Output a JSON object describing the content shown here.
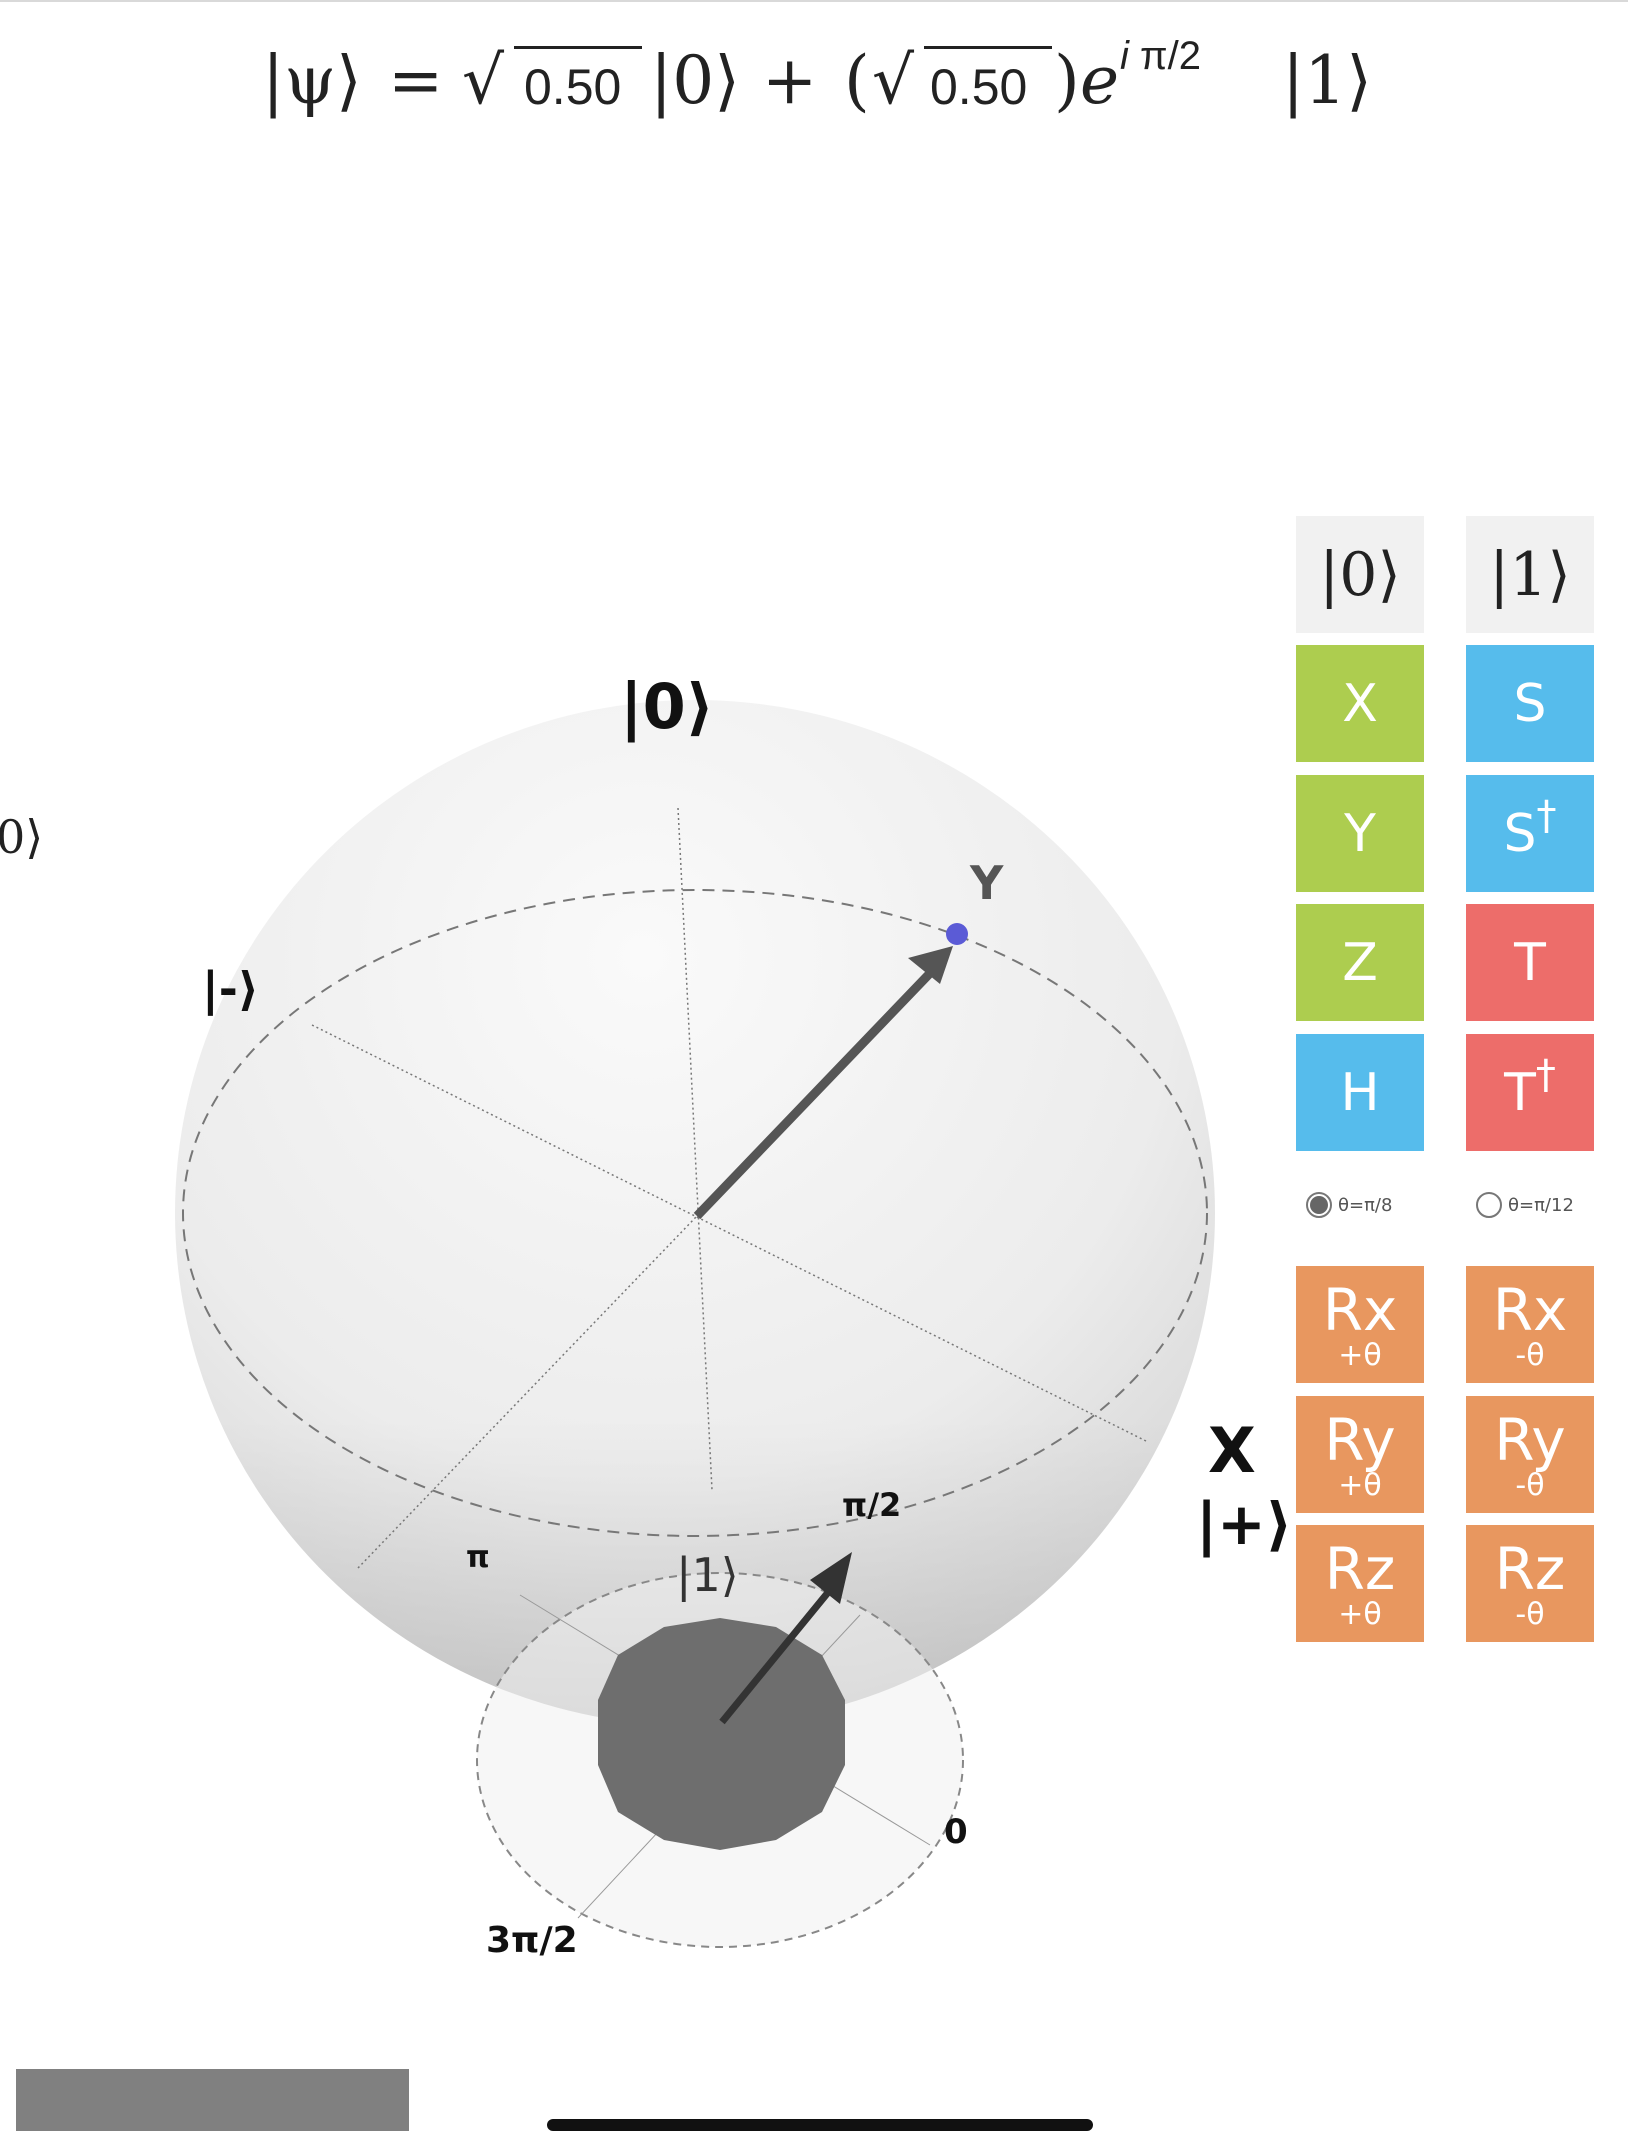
{
  "equation": {
    "psi": "|ψ⟩",
    "equals": "=",
    "amp0": "0.50",
    "ket0": "|0⟩",
    "plus": "+",
    "open_paren": "(",
    "amp1": "0.50",
    "close_paren": ")",
    "e": "e",
    "exp_i": "i",
    "exp_phase": "π/2",
    "ket1": "|1⟩"
  },
  "sphere": {
    "label_zero": "|0⟩",
    "label_zero_cut": "0⟩",
    "label_minus": "|-⟩",
    "label_y": "Y",
    "label_x": "X",
    "label_plus": "|+⟩",
    "label_one": "|1⟩",
    "phase_pi": "π",
    "phase_pi_half": "π/2",
    "phase_zero": "0",
    "phase_three_pi_half": "3π/2"
  },
  "gates": {
    "ket0": "|0⟩",
    "ket1": "|1⟩",
    "x": "X",
    "s": "S",
    "y": "Y",
    "s_dag": "S",
    "dagger": "†",
    "z": "Z",
    "t": "T",
    "h": "H",
    "t_dag": "T"
  },
  "theta": {
    "option1": "θ=π/8",
    "option2": "θ=π/12",
    "selected": "θ=π/8"
  },
  "rotations": {
    "rx": "Rx",
    "ry": "Ry",
    "rz": "Rz",
    "plus": "+θ",
    "minus": "-θ"
  },
  "colors": {
    "pauli": "#adcd4f",
    "clifford": "#56bcec",
    "t_gate": "#ed6d6a",
    "rotation": "#e8975f",
    "reset": "#f1f1f1",
    "state_point": "#5b5bd6"
  }
}
